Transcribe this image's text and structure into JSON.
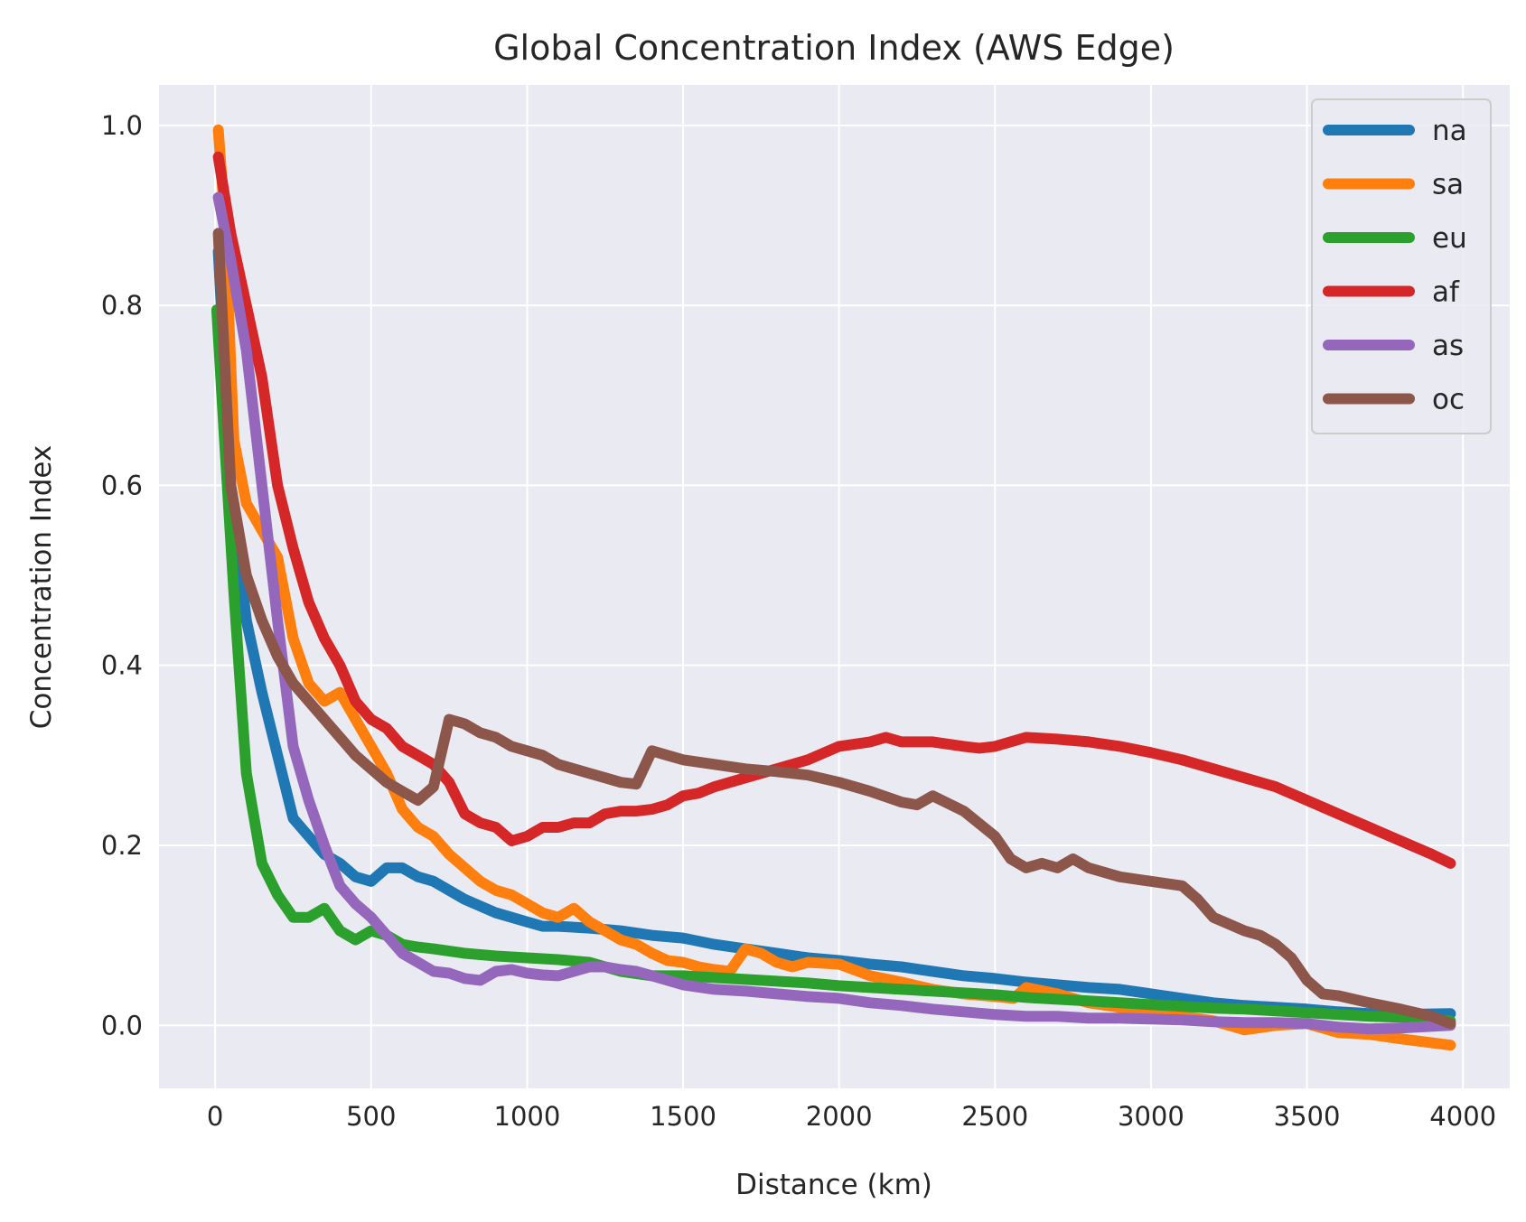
{
  "chart_data": {
    "type": "line",
    "title": "Global Concentration Index (AWS Edge)",
    "xlabel": "Distance (km)",
    "ylabel": "Concentration Index",
    "xlim": [
      -180,
      4150
    ],
    "ylim": [
      -0.07,
      1.045
    ],
    "xticks": [
      0,
      500,
      1000,
      1500,
      2000,
      2500,
      3000,
      3500,
      4000
    ],
    "yticks": [
      0.0,
      0.2,
      0.4,
      0.6,
      0.8,
      1.0
    ],
    "xtick_labels": [
      "0",
      "500",
      "1000",
      "1500",
      "2000",
      "2500",
      "3000",
      "3500",
      "4000"
    ],
    "ytick_labels": [
      "0.0",
      "0.2",
      "0.4",
      "0.6",
      "0.8",
      "1.0"
    ],
    "grid": true,
    "legend_position": "top-right",
    "series": [
      {
        "name": "na",
        "color": "#1f77b4",
        "x": [
          10,
          50,
          100,
          150,
          200,
          250,
          300,
          350,
          400,
          450,
          500,
          550,
          600,
          650,
          700,
          800,
          900,
          950,
          1000,
          1050,
          1100,
          1200,
          1300,
          1400,
          1500,
          1600,
          1700,
          1800,
          1900,
          2000,
          2100,
          2200,
          2300,
          2400,
          2500,
          2600,
          2700,
          2800,
          2900,
          3000,
          3100,
          3200,
          3300,
          3400,
          3500,
          3600,
          3700,
          3800,
          3960
        ],
        "y": [
          0.86,
          0.6,
          0.45,
          0.37,
          0.3,
          0.23,
          0.21,
          0.19,
          0.18,
          0.165,
          0.16,
          0.175,
          0.175,
          0.165,
          0.16,
          0.14,
          0.125,
          0.12,
          0.115,
          0.11,
          0.11,
          0.108,
          0.105,
          0.1,
          0.097,
          0.09,
          0.085,
          0.08,
          0.075,
          0.072,
          0.068,
          0.065,
          0.06,
          0.055,
          0.052,
          0.048,
          0.045,
          0.042,
          0.04,
          0.035,
          0.03,
          0.025,
          0.022,
          0.02,
          0.018,
          0.015,
          0.013,
          0.012,
          0.013
        ]
      },
      {
        "name": "sa",
        "color": "#ff7f0e",
        "x": [
          10,
          30,
          60,
          100,
          150,
          200,
          250,
          300,
          350,
          400,
          450,
          500,
          550,
          600,
          650,
          700,
          750,
          800,
          850,
          900,
          950,
          1000,
          1050,
          1100,
          1150,
          1200,
          1250,
          1300,
          1350,
          1400,
          1450,
          1500,
          1550,
          1600,
          1650,
          1700,
          1750,
          1800,
          1850,
          1900,
          2000,
          2100,
          2200,
          2300,
          2400,
          2500,
          2560,
          2600,
          2700,
          2800,
          2900,
          3000,
          3100,
          3200,
          3300,
          3400,
          3500,
          3600,
          3700,
          3800,
          3960
        ],
        "y": [
          0.995,
          0.9,
          0.65,
          0.58,
          0.55,
          0.52,
          0.43,
          0.38,
          0.36,
          0.37,
          0.34,
          0.31,
          0.28,
          0.24,
          0.22,
          0.21,
          0.19,
          0.175,
          0.16,
          0.15,
          0.145,
          0.135,
          0.125,
          0.12,
          0.13,
          0.115,
          0.105,
          0.095,
          0.09,
          0.08,
          0.072,
          0.07,
          0.065,
          0.062,
          0.06,
          0.085,
          0.08,
          0.07,
          0.065,
          0.07,
          0.068,
          0.055,
          0.048,
          0.04,
          0.035,
          0.032,
          0.03,
          0.042,
          0.035,
          0.025,
          0.02,
          0.015,
          0.01,
          0.005,
          -0.005,
          0.0,
          0.002,
          -0.008,
          -0.01,
          -0.015,
          -0.022
        ]
      },
      {
        "name": "eu",
        "color": "#2ca02c",
        "x": [
          5,
          30,
          60,
          100,
          150,
          200,
          250,
          300,
          350,
          400,
          450,
          500,
          550,
          600,
          650,
          700,
          800,
          900,
          1000,
          1100,
          1200,
          1300,
          1400,
          1500,
          1600,
          1700,
          1800,
          1900,
          2000,
          2100,
          2200,
          2300,
          2400,
          2500,
          2600,
          2700,
          2800,
          2900,
          3000,
          3100,
          3200,
          3300,
          3400,
          3500,
          3600,
          3700,
          3800,
          3960
        ],
        "y": [
          0.795,
          0.65,
          0.48,
          0.28,
          0.18,
          0.145,
          0.12,
          0.12,
          0.13,
          0.105,
          0.095,
          0.105,
          0.1,
          0.09,
          0.087,
          0.085,
          0.08,
          0.077,
          0.075,
          0.073,
          0.07,
          0.06,
          0.055,
          0.055,
          0.053,
          0.051,
          0.049,
          0.047,
          0.044,
          0.042,
          0.04,
          0.038,
          0.036,
          0.034,
          0.031,
          0.029,
          0.027,
          0.025,
          0.023,
          0.021,
          0.019,
          0.018,
          0.016,
          0.014,
          0.012,
          0.01,
          0.009,
          0.005
        ]
      },
      {
        "name": "af",
        "color": "#d62728",
        "x": [
          10,
          50,
          100,
          150,
          200,
          250,
          300,
          350,
          400,
          450,
          500,
          550,
          600,
          650,
          700,
          750,
          800,
          850,
          900,
          950,
          1000,
          1050,
          1100,
          1150,
          1200,
          1250,
          1300,
          1350,
          1400,
          1450,
          1500,
          1550,
          1600,
          1700,
          1800,
          1900,
          2000,
          2100,
          2150,
          2200,
          2300,
          2400,
          2450,
          2500,
          2600,
          2700,
          2800,
          2900,
          3000,
          3100,
          3200,
          3300,
          3400,
          3500,
          3600,
          3700,
          3800,
          3900,
          3960
        ],
        "y": [
          0.965,
          0.88,
          0.8,
          0.72,
          0.6,
          0.53,
          0.47,
          0.43,
          0.4,
          0.36,
          0.34,
          0.33,
          0.31,
          0.3,
          0.29,
          0.27,
          0.235,
          0.225,
          0.22,
          0.205,
          0.21,
          0.22,
          0.22,
          0.225,
          0.225,
          0.235,
          0.238,
          0.238,
          0.24,
          0.245,
          0.255,
          0.258,
          0.265,
          0.275,
          0.285,
          0.295,
          0.31,
          0.315,
          0.32,
          0.315,
          0.315,
          0.31,
          0.308,
          0.31,
          0.32,
          0.318,
          0.315,
          0.31,
          0.303,
          0.295,
          0.285,
          0.275,
          0.265,
          0.25,
          0.235,
          0.22,
          0.205,
          0.19,
          0.18
        ]
      },
      {
        "name": "as",
        "color": "#9467bd",
        "x": [
          10,
          50,
          100,
          150,
          200,
          250,
          300,
          350,
          400,
          450,
          500,
          550,
          600,
          650,
          700,
          750,
          800,
          850,
          900,
          950,
          1000,
          1050,
          1100,
          1150,
          1200,
          1250,
          1300,
          1350,
          1400,
          1500,
          1600,
          1700,
          1800,
          1900,
          2000,
          2100,
          2200,
          2300,
          2400,
          2500,
          2600,
          2700,
          2800,
          2900,
          3000,
          3100,
          3200,
          3300,
          3400,
          3500,
          3600,
          3700,
          3800,
          3960
        ],
        "y": [
          0.92,
          0.85,
          0.75,
          0.6,
          0.45,
          0.31,
          0.25,
          0.2,
          0.155,
          0.135,
          0.12,
          0.1,
          0.08,
          0.07,
          0.06,
          0.058,
          0.052,
          0.05,
          0.06,
          0.062,
          0.058,
          0.056,
          0.055,
          0.06,
          0.065,
          0.065,
          0.062,
          0.06,
          0.055,
          0.045,
          0.04,
          0.038,
          0.035,
          0.032,
          0.03,
          0.025,
          0.022,
          0.018,
          0.015,
          0.012,
          0.01,
          0.01,
          0.008,
          0.008,
          0.007,
          0.006,
          0.004,
          0.003,
          0.003,
          0.002,
          -0.002,
          -0.004,
          -0.003,
          0.0
        ]
      },
      {
        "name": "oc",
        "color": "#8c564b",
        "x": [
          10,
          50,
          100,
          150,
          200,
          250,
          300,
          350,
          400,
          450,
          500,
          550,
          600,
          650,
          700,
          750,
          800,
          850,
          900,
          950,
          1000,
          1050,
          1100,
          1150,
          1200,
          1250,
          1300,
          1350,
          1400,
          1450,
          1500,
          1600,
          1700,
          1800,
          1900,
          2000,
          2100,
          2200,
          2250,
          2300,
          2400,
          2500,
          2550,
          2600,
          2650,
          2700,
          2750,
          2800,
          2900,
          3000,
          3100,
          3150,
          3200,
          3300,
          3350,
          3400,
          3450,
          3500,
          3550,
          3600,
          3700,
          3800,
          3900,
          3960
        ],
        "y": [
          0.88,
          0.6,
          0.5,
          0.45,
          0.41,
          0.38,
          0.36,
          0.34,
          0.32,
          0.3,
          0.285,
          0.27,
          0.26,
          0.25,
          0.265,
          0.34,
          0.335,
          0.325,
          0.32,
          0.31,
          0.305,
          0.3,
          0.29,
          0.285,
          0.28,
          0.275,
          0.27,
          0.268,
          0.305,
          0.3,
          0.295,
          0.29,
          0.285,
          0.282,
          0.278,
          0.27,
          0.26,
          0.248,
          0.245,
          0.255,
          0.238,
          0.21,
          0.185,
          0.175,
          0.18,
          0.175,
          0.185,
          0.175,
          0.165,
          0.16,
          0.155,
          0.14,
          0.12,
          0.105,
          0.1,
          0.09,
          0.075,
          0.05,
          0.035,
          0.033,
          0.025,
          0.018,
          0.01,
          0.002
        ]
      }
    ]
  }
}
